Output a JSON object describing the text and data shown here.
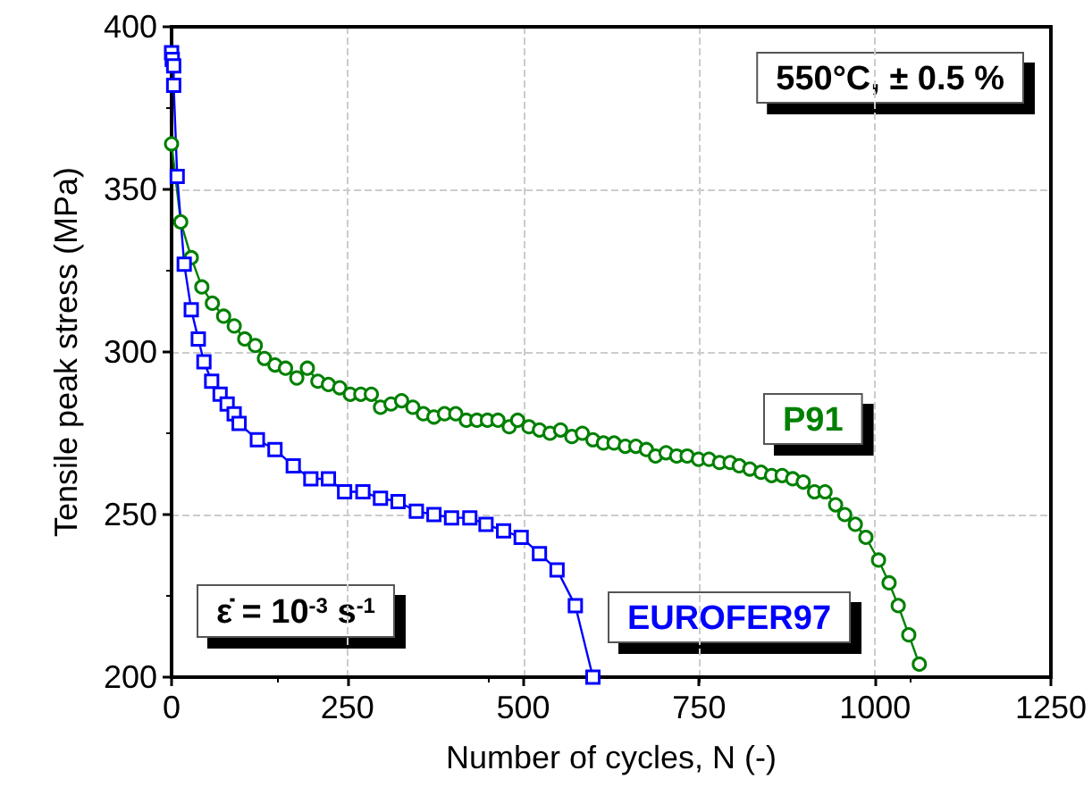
{
  "chart_data": {
    "type": "line",
    "xlabel": "Number of cycles, N (-)",
    "ylabel": "Tensile peak stress (MPa)",
    "xlim": [
      0,
      1250
    ],
    "xticks": [
      0,
      250,
      500,
      750,
      1000,
      1250
    ],
    "ylim": [
      200,
      400
    ],
    "yticks": [
      200,
      250,
      300,
      350,
      400
    ],
    "grid": true,
    "legend": false,
    "line_style": "solid",
    "annotations": [
      "550°C, ± 0.5 %",
      "ε̇ = 10$^{-3}$ s$^{-1}$"
    ],
    "series": [
      {
        "name": "P91",
        "color": "#008000",
        "marker": "circle",
        "x": [
          0,
          13,
          28,
          43,
          58,
          74,
          89,
          104,
          119,
          132,
          147,
          162,
          178,
          193,
          208,
          223,
          239,
          254,
          269,
          284,
          297,
          312,
          327,
          343,
          358,
          373,
          388,
          404,
          419,
          434,
          449,
          464,
          480,
          492,
          508,
          523,
          538,
          553,
          569,
          584,
          599,
          614,
          629,
          645,
          660,
          675,
          688,
          703,
          718,
          733,
          749,
          764,
          779,
          794,
          807,
          822,
          838,
          853,
          868,
          883,
          898,
          914,
          929,
          944,
          957,
          972,
          987,
          1005,
          1020,
          1033,
          1048,
          1063
        ],
        "values": [
          364,
          340,
          329,
          320,
          315,
          311,
          308,
          304,
          302,
          298,
          296,
          295,
          292,
          295,
          291,
          290,
          289,
          287,
          287,
          287,
          283,
          284,
          285,
          283,
          281,
          280,
          281,
          281,
          279,
          279,
          279,
          279,
          277,
          279,
          277,
          276,
          275,
          276,
          274,
          275,
          273,
          272,
          272,
          271,
          271,
          270,
          268,
          269,
          268,
          268,
          267,
          267,
          266,
          266,
          265,
          264,
          263,
          262,
          262,
          261,
          260,
          257,
          257,
          253,
          250,
          247,
          243,
          236,
          229,
          222,
          213,
          204
        ]
      },
      {
        "name": "EUROFER97",
        "color": "#0000ff",
        "marker": "square",
        "x": [
          0,
          1,
          3,
          3,
          8,
          18,
          28,
          38,
          46,
          57,
          69,
          79,
          89,
          96,
          122,
          147,
          173,
          198,
          223,
          246,
          272,
          297,
          322,
          348,
          373,
          398,
          424,
          447,
          472,
          497,
          523,
          548,
          574,
          599
        ],
        "values": [
          392,
          390,
          388,
          382,
          354,
          327,
          313,
          304,
          297,
          291,
          287,
          284,
          281,
          278,
          273,
          270,
          265,
          261,
          261,
          257,
          257,
          255,
          254,
          251,
          250,
          249,
          249,
          247,
          245,
          243,
          238,
          233,
          222,
          200
        ]
      }
    ]
  }
}
